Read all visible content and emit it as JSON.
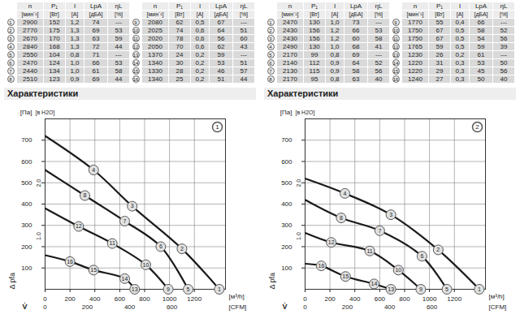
{
  "tables": [
    {
      "headers": [
        "n",
        "P₁",
        "I",
        "LpA",
        "ηL"
      ],
      "units": [
        "[мин⁻¹]",
        "[Вт]",
        "[A]",
        "[дБА]",
        "[%]"
      ],
      "rows": [
        [
          1,
          "2900",
          "152",
          "1,2",
          "74",
          "---"
        ],
        [
          2,
          "2770",
          "175",
          "1,3",
          "69",
          "53"
        ],
        [
          3,
          "2670",
          "170",
          "1,3",
          "63",
          "59"
        ],
        [
          4,
          "2840",
          "168",
          "1,3",
          "72",
          "44"
        ],
        [
          5,
          "2550",
          "104",
          "0,8",
          "71",
          "---"
        ],
        [
          6,
          "2470",
          "124",
          "1,0",
          "66",
          "53"
        ],
        [
          7,
          "2440",
          "134",
          "1,0",
          "61",
          "58"
        ],
        [
          8,
          "2510",
          "123",
          "0,9",
          "69",
          "44"
        ],
        [
          9,
          "2080",
          "62",
          "0,5",
          "67",
          "---"
        ],
        [
          10,
          "2025",
          "74",
          "0,6",
          "64",
          "51"
        ],
        [
          11,
          "2020",
          "78",
          "0,6",
          "56",
          "60"
        ],
        [
          12,
          "2050",
          "70",
          "0,6",
          "62",
          "43"
        ],
        [
          13,
          "1370",
          "24",
          "0,2",
          "59",
          "---"
        ],
        [
          14,
          "1340",
          "30",
          "0,2",
          "53",
          "51"
        ],
        [
          15,
          "1330",
          "28",
          "0,2",
          "46",
          "57"
        ],
        [
          16,
          "1340",
          "25",
          "0,2",
          "51",
          "44"
        ]
      ]
    },
    {
      "headers": [
        "n",
        "P₁",
        "I",
        "LpA",
        "ηL"
      ],
      "units": [
        "[мин⁻¹]",
        "[Вт]",
        "[A]",
        "[дБА]",
        "[%]"
      ],
      "rows": [
        [
          1,
          "2470",
          "130",
          "1,0",
          "73",
          "---"
        ],
        [
          2,
          "2430",
          "156",
          "1,2",
          "66",
          "53"
        ],
        [
          3,
          "2430",
          "156",
          "1,2",
          "60",
          "58"
        ],
        [
          4,
          "2490",
          "130",
          "1,0",
          "68",
          "41"
        ],
        [
          5,
          "2170",
          "99",
          "0,8",
          "69",
          "---"
        ],
        [
          6,
          "2140",
          "112",
          "0,9",
          "64",
          "52"
        ],
        [
          7,
          "2130",
          "115",
          "0,9",
          "58",
          "56"
        ],
        [
          8,
          "2170",
          "95",
          "0,8",
          "63",
          "40"
        ],
        [
          9,
          "1770",
          "55",
          "0,4",
          "66",
          "---"
        ],
        [
          10,
          "1750",
          "67",
          "0,5",
          "58",
          "52"
        ],
        [
          11,
          "1750",
          "67",
          "0,5",
          "54",
          "56"
        ],
        [
          12,
          "1765",
          "59",
          "0,5",
          "59",
          "39"
        ],
        [
          13,
          "1230",
          "26",
          "0,2",
          "61",
          "---"
        ],
        [
          14,
          "1220",
          "31",
          "0,3",
          "53",
          "50"
        ],
        [
          15,
          "1220",
          "29",
          "0,3",
          "45",
          "56"
        ],
        [
          16,
          "1240",
          "27",
          "0,3",
          "50",
          "40"
        ]
      ]
    }
  ],
  "chart_data": [
    {
      "type": "line",
      "title": "Характеристики",
      "panel": "1",
      "x_label": "V̇",
      "x_unit": "[м³/h]",
      "x2_unit": "[CFM]",
      "y_label": "Δ pfa",
      "y_unit": "[Па]",
      "y2_unit": "[в H2O]",
      "xlim": [
        0,
        1450
      ],
      "xticks": [
        0,
        200,
        400,
        600,
        800,
        1000,
        1200
      ],
      "x2lim": [
        0,
        853.4
      ],
      "x2ticks": [
        0,
        200,
        400,
        600
      ],
      "ylim": [
        0,
        800
      ],
      "yticks": [
        100,
        200,
        300,
        400,
        500,
        600,
        700
      ],
      "y2lim": [
        0,
        3.21
      ],
      "y2ticks": [
        {
          "value": 1,
          "label": "1.0"
        },
        {
          "value": 2,
          "label": "2.0"
        }
      ],
      "grid": true,
      "series": [
        {
          "color": "#1a1a1a",
          "x": [
            0,
            390,
            700,
            1100,
            1400
          ],
          "values": [
            720,
            560,
            390,
            190,
            0
          ],
          "point_labels": [
            null,
            4,
            3,
            2,
            1
          ]
        },
        {
          "color": "#1a1a1a",
          "x": [
            0,
            320,
            640,
            930,
            1150
          ],
          "values": [
            560,
            440,
            320,
            200,
            0
          ],
          "point_labels": [
            null,
            8,
            7,
            6,
            5
          ]
        },
        {
          "color": "#1a1a1a",
          "x": [
            0,
            270,
            540,
            810,
            990
          ],
          "values": [
            380,
            295,
            215,
            115,
            0
          ],
          "point_labels": [
            null,
            12,
            11,
            10,
            9
          ]
        },
        {
          "color": "#1a1a1a",
          "x": [
            0,
            200,
            390,
            640,
            720
          ],
          "values": [
            160,
            130,
            90,
            50,
            0
          ],
          "point_labels": [
            null,
            16,
            15,
            14,
            13
          ]
        }
      ]
    },
    {
      "type": "line",
      "title": "Характеристики",
      "panel": "2",
      "x_label": "V̇",
      "x_unit": "[м³/h]",
      "x2_unit": "[CFM]",
      "y_label": "Δ pfa",
      "y_unit": "[Па]",
      "y2_unit": "[в H2O]",
      "xlim": [
        0,
        1450
      ],
      "xticks": [
        0,
        200,
        400,
        600,
        800,
        1000,
        1200
      ],
      "x2lim": [
        0,
        853.4
      ],
      "x2ticks": [
        0,
        200,
        400,
        600
      ],
      "ylim": [
        0,
        800
      ],
      "yticks": [
        100,
        200,
        300,
        400,
        500,
        600,
        700
      ],
      "y2lim": [
        0,
        3.21
      ],
      "y2ticks": [
        {
          "value": 1,
          "label": "1.0"
        },
        {
          "value": 2,
          "label": "2.0"
        }
      ],
      "grid": true,
      "series": [
        {
          "color": "#1a1a1a",
          "x": [
            0,
            320,
            690,
            1070,
            1400
          ],
          "values": [
            520,
            450,
            350,
            185,
            0
          ],
          "point_labels": [
            null,
            4,
            3,
            2,
            1
          ]
        },
        {
          "color": "#1a1a1a",
          "x": [
            0,
            290,
            600,
            940,
            1140
          ],
          "values": [
            420,
            335,
            275,
            155,
            0
          ],
          "point_labels": [
            null,
            8,
            7,
            6,
            5
          ]
        },
        {
          "color": "#1a1a1a",
          "x": [
            0,
            210,
            520,
            750,
            930
          ],
          "values": [
            265,
            220,
            180,
            90,
            0
          ],
          "point_labels": [
            null,
            12,
            11,
            10,
            9
          ]
        },
        {
          "color": "#1a1a1a",
          "x": [
            0,
            130,
            325,
            555,
            690
          ],
          "values": [
            120,
            110,
            60,
            25,
            0
          ],
          "point_labels": [
            null,
            16,
            15,
            14,
            13
          ]
        }
      ]
    }
  ]
}
